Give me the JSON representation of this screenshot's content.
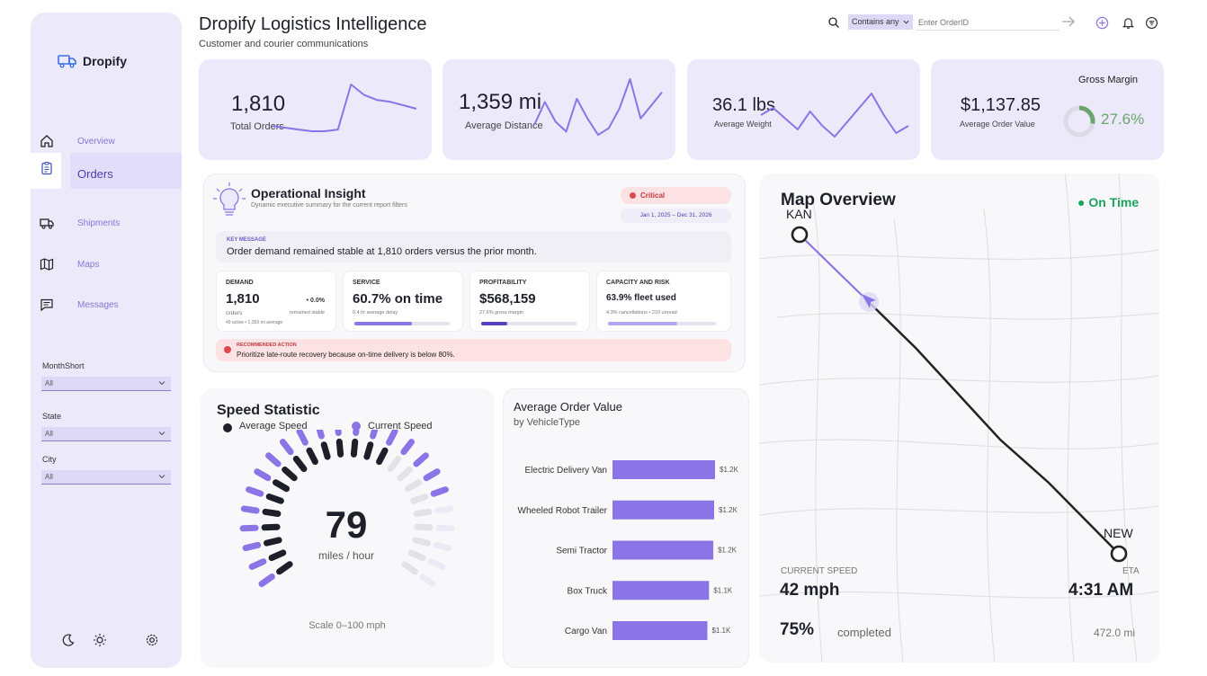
{
  "app": {
    "brand": "Dropify"
  },
  "header": {
    "title": "Dropify Logistics Intelligence",
    "subtitle": "Customer and courier communications"
  },
  "search": {
    "mode": "Contains any",
    "placeholder": "Enter OrderID"
  },
  "sidebar": {
    "items": [
      {
        "label": "Overview",
        "icon": "home-icon"
      },
      {
        "label": "Orders",
        "icon": "clipboard-icon",
        "active": true
      },
      {
        "label": "Shipments",
        "icon": "truck-icon"
      },
      {
        "label": "Maps",
        "icon": "map-icon"
      },
      {
        "label": "Messages",
        "icon": "message-icon"
      }
    ],
    "filters": [
      {
        "label": "MonthShort",
        "value": "All"
      },
      {
        "label": "State",
        "value": "All"
      },
      {
        "label": "City",
        "value": "All"
      }
    ]
  },
  "kpis": [
    {
      "value": "1,810",
      "label": "Total Orders",
      "spark": [
        12,
        11,
        10,
        9,
        9,
        10,
        36,
        30,
        27,
        26,
        24,
        22
      ]
    },
    {
      "value": "1,359 mi",
      "label": "Average Distance",
      "spark": [
        10,
        24,
        12,
        6,
        26,
        14,
        4,
        8,
        20,
        38,
        14,
        22,
        30
      ]
    },
    {
      "value": "36.1 lbs",
      "label": "Average Weight",
      "spark": [
        18,
        22,
        16,
        10,
        20,
        12,
        6,
        14,
        22,
        30,
        18,
        8,
        12
      ]
    },
    {
      "value": "$1,137.85",
      "label": "Average Order Value",
      "gauge_title": "Gross Margin",
      "gauge_value": "27.6%",
      "gauge_fraction": 0.276
    }
  ],
  "insight": {
    "title": "Operational Insight",
    "subtitle": "Dynamic executive summary for the current report filters",
    "badge": "Critical",
    "date_range": "Jan 1, 2025 – Dec 31, 2026",
    "key_label": "KEY MESSAGE",
    "key_text": "Order demand remained stable at 1,810 orders versus the prior month.",
    "cards": [
      {
        "title": "DEMAND",
        "value": "1,810",
        "sub": "orders",
        "delta": "• 0.0%",
        "delta_sub": "remained stable",
        "note": "49 active • 1,359 mi average"
      },
      {
        "title": "SERVICE",
        "value": "60.7% on time",
        "sub": "0.4 hr average delay",
        "progress": 0.607
      },
      {
        "title": "PROFITABILITY",
        "value": "$568,159",
        "sub": "27.6% gross margin",
        "progress": 0.276
      },
      {
        "title": "CAPACITY AND RISK",
        "value": "63.9% fleet used",
        "sub": "4.3% cancellations • 210 unread",
        "progress": 0.639
      }
    ],
    "action_label": "RECOMMENDED ACTION",
    "action_text": "Prioritize late-route recovery because on-time delivery is below 80%."
  },
  "speed": {
    "title": "Speed Statistic",
    "legend_avg": "Average Speed",
    "legend_cur": "Current Speed",
    "value": "79",
    "unit": "miles / hour",
    "scale": "Scale 0–100 mph",
    "current_fraction": 0.79,
    "average_fraction": 0.62
  },
  "aov": {
    "title": "Average Order Value",
    "subtitle": "by VehicleType"
  },
  "chart_data": {
    "type": "bar",
    "title": "Average Order Value",
    "subtitle": "by VehicleType",
    "categories": [
      "Electric Delivery Van",
      "Wheeled Robot Trailer",
      "Semi Tractor",
      "Box Truck",
      "Cargo Van"
    ],
    "values": [
      1.2,
      1.19,
      1.18,
      1.13,
      1.11
    ],
    "value_labels": [
      "$1.2K",
      "$1.2K",
      "$1.2K",
      "$1.1K",
      "$1.1K"
    ],
    "orientation": "horizontal",
    "color": "#8b74e6"
  },
  "map": {
    "title": "Map Overview",
    "status": "● On Time",
    "origin": "KAN",
    "destination": "NEW",
    "speed_label": "CURRENT SPEED",
    "speed_value": "42 mph",
    "eta_label": "ETA",
    "eta_value": "4:31 AM",
    "completed_value": "75%",
    "completed_label": "completed",
    "distance": "472.0 mi"
  },
  "colors": {
    "accent": "#8b74e6",
    "panel": "#ece9fb",
    "critical": "#e0474c",
    "good": "#1aa35a",
    "margin": "#6aa56e"
  }
}
